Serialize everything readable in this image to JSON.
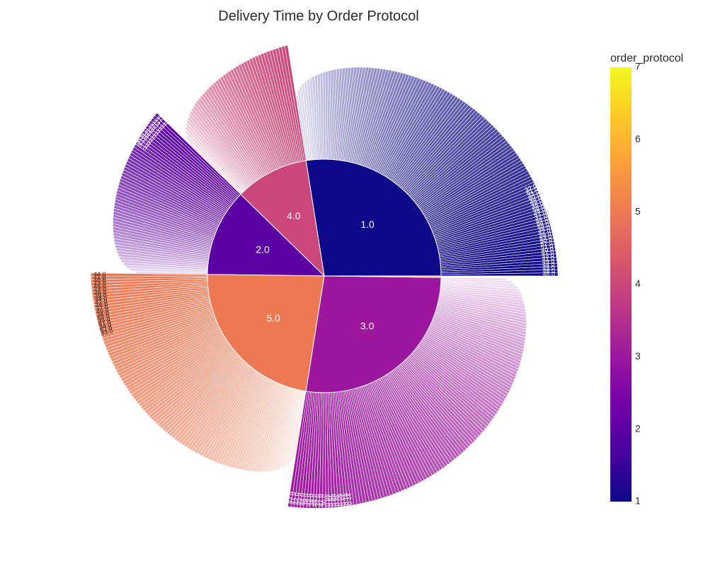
{
  "chart_data": {
    "type": "sunburst",
    "title": "Delivery Time by Order Protocol",
    "colorbar": {
      "title": "order_protocol",
      "range": [
        1,
        7
      ],
      "ticks": [
        1,
        2,
        3,
        4,
        5,
        6,
        7
      ],
      "colorscale": [
        "#0d0887",
        "#46039f",
        "#7201a8",
        "#9c179e",
        "#bd3786",
        "#d8576b",
        "#ed7953",
        "#fb9f3a",
        "#fdca26",
        "#f0f921"
      ]
    },
    "inner": [
      {
        "label": "1.0",
        "protocol": 1,
        "share": 0.275
      },
      {
        "label": "4.0",
        "protocol": 4,
        "share": 0.102
      },
      {
        "label": "2.0",
        "protocol": 2,
        "share": 0.121
      },
      {
        "label": "5.0",
        "protocol": 5,
        "share": 0.227
      },
      {
        "label": "3.0",
        "protocol": 3,
        "share": 0.273
      },
      {
        "label": "",
        "protocol": 6,
        "share": 0.002
      }
    ],
    "outer_labels": {
      "1.0": [
        "46.0",
        "48.0",
        "45.0",
        "44.0",
        "49.0",
        "41.0",
        "43.0",
        "47.0",
        "40.0",
        "51.0",
        "52.0",
        "50.0",
        "53.0",
        "39.0",
        "42.0",
        "38.0",
        "55.0",
        "54.0",
        "56.0",
        "37.0",
        "57.0",
        "36.0",
        "58.0",
        "35.0",
        "59.0",
        "34.0",
        "60.0",
        "33.0",
        "61.0",
        "32.0"
      ],
      "5.0": [
        "44.0",
        "41.0",
        "40.0",
        "43.0",
        "45.0",
        "42.0",
        "46.0",
        "39.0",
        "38.0",
        "47.0",
        "48.0",
        "37.0",
        "49.0",
        "36.0",
        "50.0",
        "35.0",
        "51.0",
        "34.0",
        "52.0",
        "33.0"
      ],
      "3.0": [
        "43.0",
        "41.0",
        "42.0",
        "40.0",
        "44.0",
        "39.0",
        "45.0",
        "38.0",
        "46.0",
        "37.0",
        "47.0",
        "36.0",
        "48.0",
        "35.0",
        "49.0",
        "34.0",
        "50.0",
        "33.0",
        "51.0",
        "32.0"
      ],
      "2.0": [
        "42.0",
        "41.0",
        "43.0",
        "40.0",
        "44.0",
        "39.0",
        "45.0",
        "38.0",
        "46.0",
        "37.0",
        "47.0",
        "36.0"
      ],
      "4.0": []
    }
  }
}
